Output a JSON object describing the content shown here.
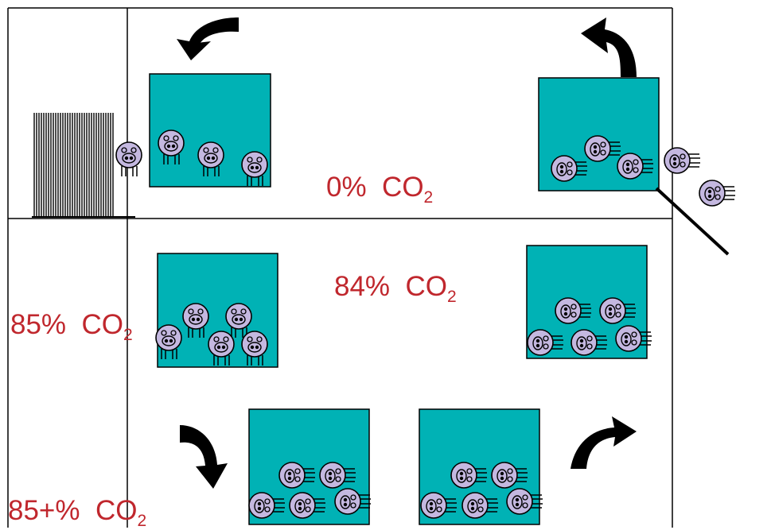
{
  "colors": {
    "cage": "#00b2b5",
    "pig": "#c4b8e0",
    "label": "#c0272d",
    "line": "#000000"
  },
  "levels": [
    {
      "name": "top-chamber",
      "percent": "0%",
      "gas": "CO",
      "sub": "2"
    },
    {
      "name": "middle-chamber",
      "percent": "84%",
      "gas": "CO",
      "sub": "2"
    },
    {
      "name": "left-upper",
      "percent": "85%",
      "gas": "CO",
      "sub": "2"
    },
    {
      "name": "left-lower",
      "percent": "85+%",
      "gas": "CO",
      "sub": "2"
    }
  ],
  "cages": [
    {
      "name": "cage-top-left",
      "pigs": 3,
      "state": "standing"
    },
    {
      "name": "cage-top-right",
      "pigs": 3,
      "state": "lying"
    },
    {
      "name": "cage-middle-left",
      "pigs": 5,
      "state": "standing"
    },
    {
      "name": "cage-middle-right",
      "pigs": 5,
      "state": "lying"
    },
    {
      "name": "cage-bottom-left",
      "pigs": 5,
      "state": "lying"
    },
    {
      "name": "cage-bottom-right",
      "pigs": 5,
      "state": "lying"
    }
  ],
  "icons": {
    "arrow": "curved-arrow-icon",
    "pig": "pig-icon",
    "gate": "gate-icon"
  }
}
